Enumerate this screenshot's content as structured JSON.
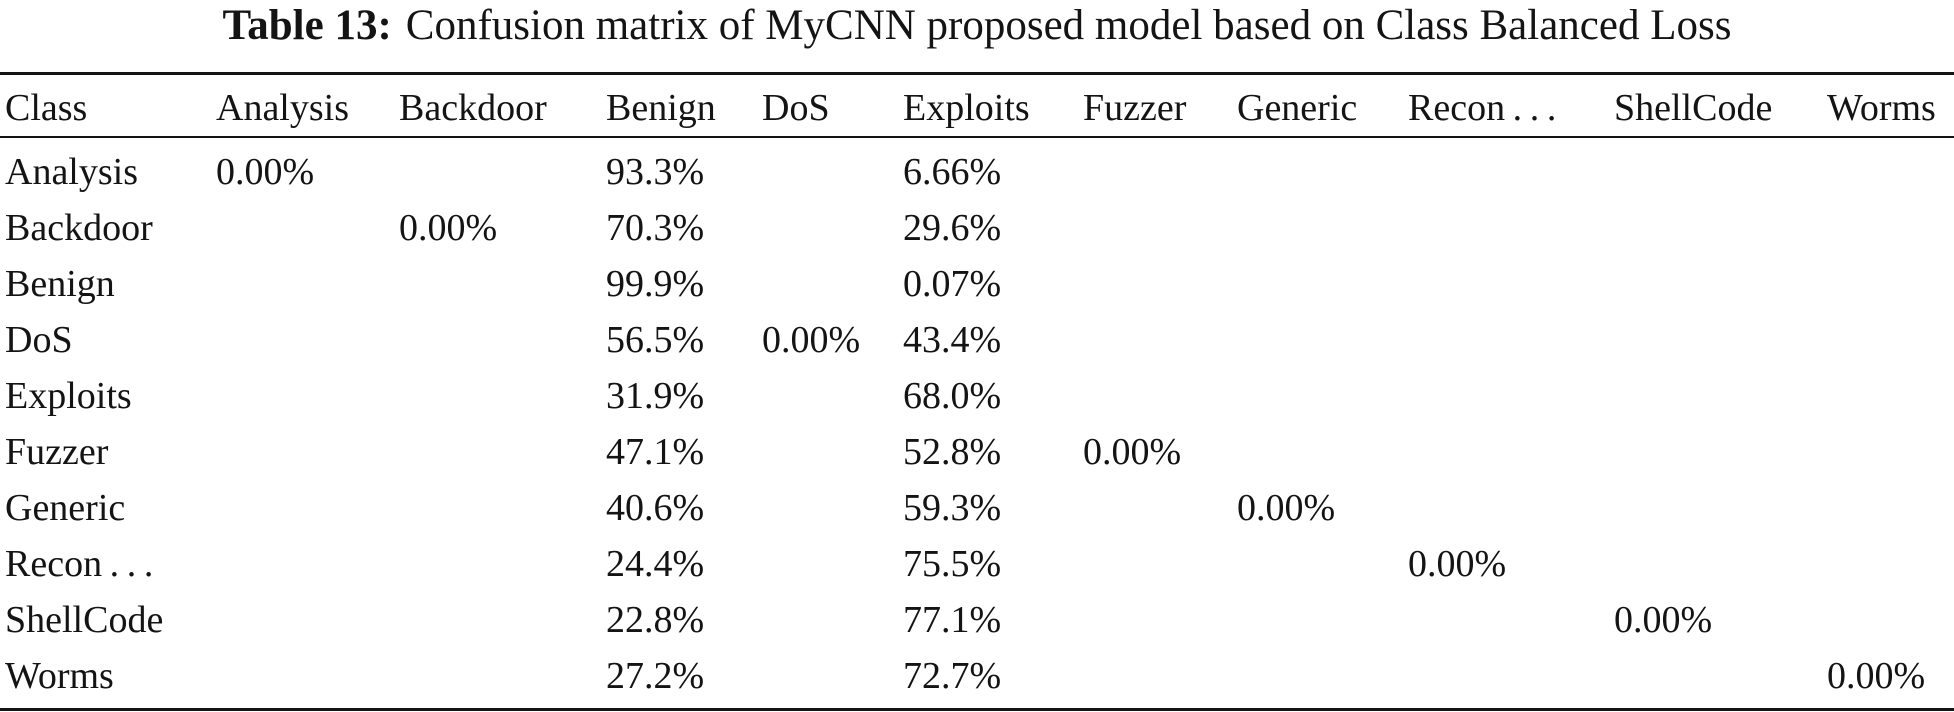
{
  "table": {
    "caption": {
      "label": "Table 13:",
      "text": "Confusion matrix of MyCNN proposed model based on Class Balanced Loss"
    },
    "columns": [
      "Class",
      "Analysis",
      "Backdoor",
      "Benign",
      "DoS",
      "Exploits",
      "Fuzzer",
      "Generic",
      "Recon . . .",
      "ShellCode",
      "Worms"
    ],
    "rows": [
      [
        "Analysis",
        "0.00%",
        "",
        "93.3%",
        "",
        "6.66%",
        "",
        "",
        "",
        "",
        ""
      ],
      [
        "Backdoor",
        "",
        "0.00%",
        "70.3%",
        "",
        "29.6%",
        "",
        "",
        "",
        "",
        ""
      ],
      [
        "Benign",
        "",
        "",
        "99.9%",
        "",
        "0.07%",
        "",
        "",
        "",
        "",
        ""
      ],
      [
        "DoS",
        "",
        "",
        "56.5%",
        "0.00%",
        "43.4%",
        "",
        "",
        "",
        "",
        ""
      ],
      [
        "Exploits",
        "",
        "",
        "31.9%",
        "",
        "68.0%",
        "",
        "",
        "",
        "",
        ""
      ],
      [
        "Fuzzer",
        "",
        "",
        "47.1%",
        "",
        "52.8%",
        "0.00%",
        "",
        "",
        "",
        ""
      ],
      [
        "Generic",
        "",
        "",
        "40.6%",
        "",
        "59.3%",
        "",
        "0.00%",
        "",
        "",
        ""
      ],
      [
        "Recon . . .",
        "",
        "",
        "24.4%",
        "",
        "75.5%",
        "",
        "",
        "0.00%",
        "",
        ""
      ],
      [
        "ShellCode",
        "",
        "",
        "22.8%",
        "",
        "77.1%",
        "",
        "",
        "",
        "0.00%",
        ""
      ],
      [
        "Worms",
        "",
        "",
        "27.2%",
        "",
        "72.7%",
        "",
        "",
        "",
        "",
        "0.00%"
      ]
    ]
  }
}
